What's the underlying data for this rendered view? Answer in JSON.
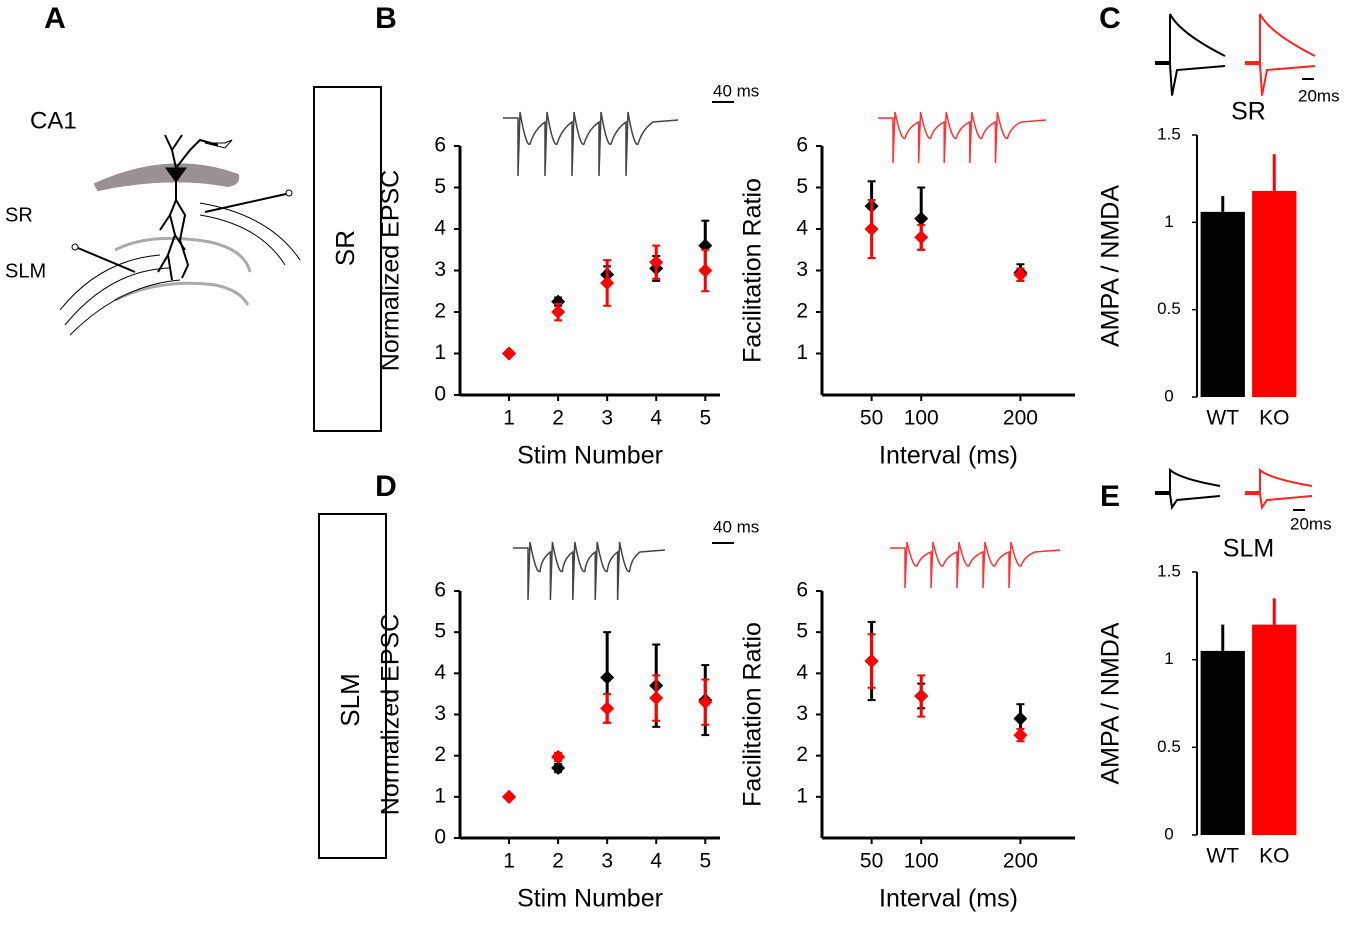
{
  "panels": [
    "A",
    "B",
    "C",
    "D",
    "E"
  ],
  "diagram": {
    "region": "CA1",
    "layers": [
      "SR",
      "SLM"
    ]
  },
  "rows": [
    "SR",
    "SLM"
  ],
  "scale_bars": [
    "40 ms",
    "20ms",
    "40 ms",
    "20ms"
  ],
  "chart_data": [
    {
      "type": "scatter",
      "xlabel": "Stim Number",
      "ylabel": "Normalized EPSC",
      "x": [
        1,
        2,
        3,
        4,
        5
      ],
      "xlim": [
        0,
        5.3
      ],
      "xticks": [
        1,
        2,
        3,
        4,
        5
      ],
      "ylim": [
        0,
        6
      ],
      "yticks": [
        0,
        1,
        2,
        3,
        4,
        5,
        6
      ],
      "series": [
        {
          "color": "#000000",
          "values": [
            1,
            2.25,
            2.9,
            3.05,
            3.6
          ],
          "errors": [
            0.05,
            0.1,
            0.2,
            0.3,
            0.6
          ]
        },
        {
          "color": "#ff0000",
          "values": [
            1,
            2.0,
            2.7,
            3.2,
            3.0
          ],
          "errors": [
            0.05,
            0.2,
            0.55,
            0.4,
            0.5
          ]
        }
      ]
    },
    {
      "type": "scatter",
      "xlabel": "Interval (ms)",
      "ylabel": "Facilitation Ratio",
      "x": [
        50,
        100,
        200
      ],
      "xlim": [
        0,
        255
      ],
      "xticks": [
        50,
        100,
        200
      ],
      "ylim": [
        0,
        6
      ],
      "yticks": [
        1,
        2,
        3,
        4,
        5,
        6
      ],
      "series": [
        {
          "color": "#000000",
          "values": [
            4.55,
            4.25,
            2.95
          ],
          "errors": [
            0.6,
            0.75,
            0.2
          ]
        },
        {
          "color": "#ff0000",
          "values": [
            4.0,
            3.8,
            2.9
          ],
          "errors": [
            0.7,
            0.3,
            0.15
          ]
        }
      ]
    },
    {
      "type": "bar",
      "title": "SR",
      "ylabel": "AMPA / NMDA",
      "categories": [
        "WT",
        "KO"
      ],
      "values": [
        1.06,
        1.18
      ],
      "errors": [
        0.09,
        0.21
      ],
      "colors": [
        "#000000",
        "#ff0000"
      ],
      "ylim": [
        0,
        1.5
      ],
      "yticks": [
        0,
        0.5,
        1,
        1.5
      ]
    },
    {
      "type": "scatter",
      "xlabel": "Stim Number",
      "ylabel": "Normalized EPSC",
      "x": [
        1,
        2,
        3,
        4,
        5
      ],
      "xlim": [
        0,
        5.3
      ],
      "xticks": [
        1,
        2,
        3,
        4,
        5
      ],
      "ylim": [
        0,
        6
      ],
      "yticks": [
        0,
        1,
        2,
        3,
        4,
        5,
        6
      ],
      "series": [
        {
          "color": "#000000",
          "values": [
            1,
            1.7,
            3.9,
            3.7,
            3.35
          ],
          "errors": [
            0.05,
            0.1,
            1.1,
            1.0,
            0.85
          ]
        },
        {
          "color": "#ff0000",
          "values": [
            1,
            1.97,
            3.15,
            3.4,
            3.3
          ],
          "errors": [
            0.05,
            0.1,
            0.35,
            0.55,
            0.55
          ]
        }
      ]
    },
    {
      "type": "scatter",
      "xlabel": "Interval (ms)",
      "ylabel": "Facilitation Ratio",
      "x": [
        50,
        100,
        200
      ],
      "xlim": [
        0,
        255
      ],
      "xticks": [
        50,
        100,
        200
      ],
      "ylim": [
        0,
        6
      ],
      "yticks": [
        1,
        2,
        3,
        4,
        5,
        6
      ],
      "series": [
        {
          "color": "#000000",
          "values": [
            4.3,
            3.45,
            2.9
          ],
          "errors": [
            0.95,
            0.3,
            0.35
          ]
        },
        {
          "color": "#ff0000",
          "values": [
            4.3,
            3.45,
            2.5
          ],
          "errors": [
            0.65,
            0.5,
            0.15
          ]
        }
      ]
    },
    {
      "type": "bar",
      "title": "SLM",
      "ylabel": "AMPA / NMDA",
      "categories": [
        "WT",
        "KO"
      ],
      "values": [
        1.05,
        1.2
      ],
      "errors": [
        0.15,
        0.15
      ],
      "colors": [
        "#000000",
        "#ff0000"
      ],
      "ylim": [
        0,
        1.5
      ],
      "yticks": [
        0,
        0.5,
        1,
        1.5
      ]
    }
  ]
}
